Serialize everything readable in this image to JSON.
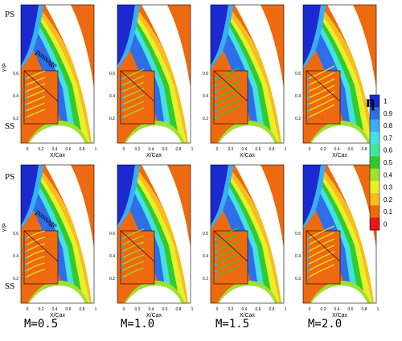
{
  "figure": {
    "axis_labels": {
      "x": "X/Cax",
      "y": "Y/P"
    },
    "x_ticks": [
      "0",
      "0.2",
      "0.4",
      "0.6",
      "0.8",
      "1"
    ],
    "y_ticks": [
      "0.2",
      "0.4",
      "0.6"
    ],
    "side_labels": {
      "pressure_side": "PS",
      "suction_side": "SS",
      "passage": "passage"
    },
    "rows": [
      {
        "panels": [
          {
            "m_label": ""
          },
          {
            "m_label": ""
          },
          {
            "m_label": ""
          },
          {
            "m_label": ""
          }
        ]
      },
      {
        "panels": [
          {
            "m_label": "M=0.5"
          },
          {
            "m_label": "M=1.0"
          },
          {
            "m_label": "M=1.5"
          },
          {
            "m_label": "M=2.0"
          }
        ]
      }
    ],
    "legend": {
      "title": "η",
      "ticks": [
        "1",
        "0.9",
        "0.8",
        "0.7",
        "0.6",
        "0.5",
        "0.4",
        "0.3",
        "0.2",
        "0.1",
        "0"
      ],
      "colors": [
        "#1a2ad0",
        "#2f6ee8",
        "#3aaef2",
        "#45dfe6",
        "#3fe79c",
        "#2fcc2f",
        "#9fe22d",
        "#e9ef2b",
        "#f8bc1c",
        "#ee6a10",
        "#e91616"
      ]
    }
  }
}
